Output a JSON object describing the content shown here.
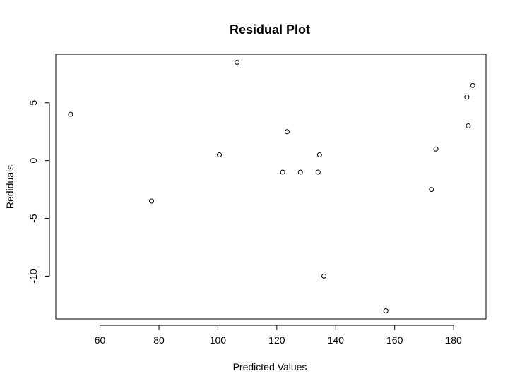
{
  "chart_data": {
    "type": "scatter",
    "title": "Residual Plot",
    "xlabel": "Predicted Values",
    "ylabel": "Rediduals",
    "xlim": [
      45,
      191
    ],
    "ylim": [
      -13.7,
      9.2
    ],
    "xticks": [
      60,
      80,
      100,
      120,
      140,
      160,
      180
    ],
    "yticks": [
      -10,
      -5,
      0,
      5
    ],
    "grid": false,
    "legend": "none",
    "point_color": "#000000",
    "series": [
      {
        "x": [
          50,
          77.5,
          100.5,
          106.5,
          122,
          123.5,
          128,
          134,
          134.5,
          136,
          157,
          172.5,
          174,
          184.5,
          185,
          186.5
        ],
        "y": [
          4,
          -3.5,
          0.5,
          8.5,
          -1,
          2.5,
          -1,
          -1,
          0.5,
          -10,
          -13,
          -2.5,
          1,
          5.5,
          3,
          6.5
        ]
      }
    ]
  }
}
